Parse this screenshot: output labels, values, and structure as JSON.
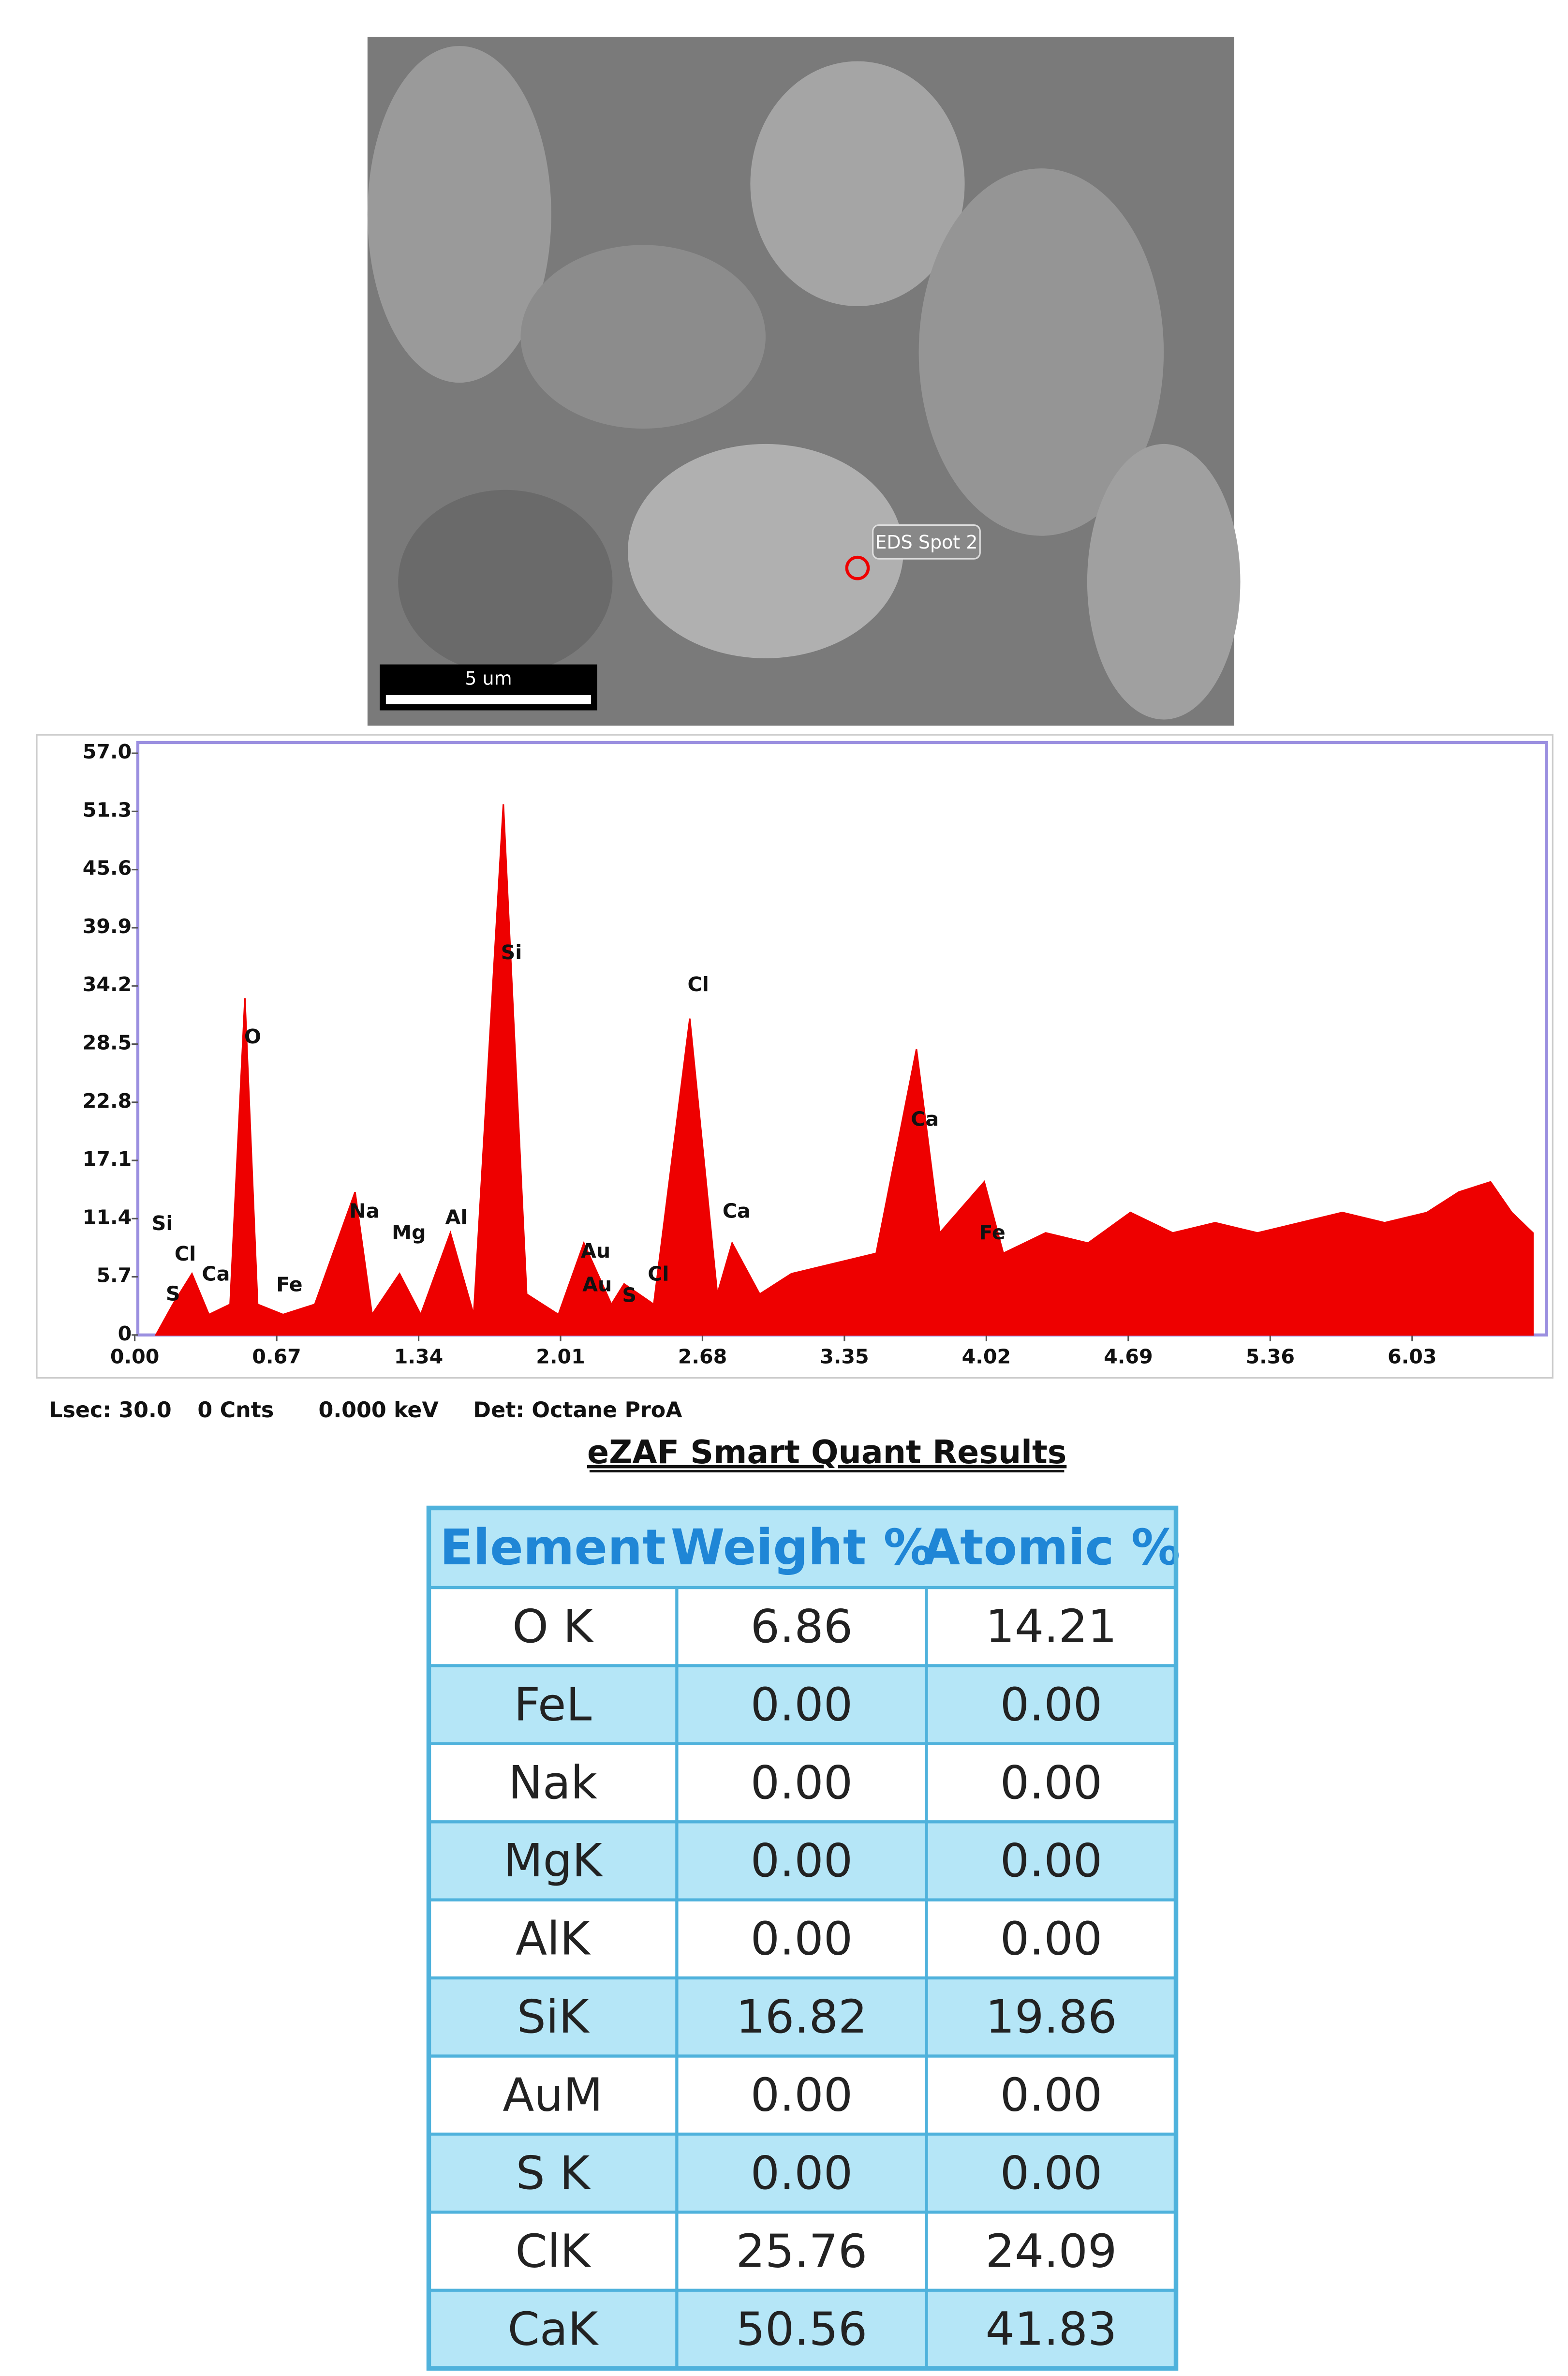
{
  "image": {
    "label": "EDS Spot 2",
    "scale_bar": "5 um"
  },
  "chart_data": {
    "type": "area",
    "color": "#ee0000",
    "x": [
      0.1,
      0.18,
      0.27,
      0.35,
      0.45,
      0.52,
      0.58,
      0.7,
      0.85,
      1.04,
      1.12,
      1.25,
      1.35,
      1.49,
      1.6,
      1.74,
      1.85,
      2.0,
      2.12,
      2.25,
      2.31,
      2.45,
      2.62,
      2.75,
      2.82,
      2.95,
      3.1,
      3.3,
      3.5,
      3.69,
      3.8,
      4.01,
      4.1,
      4.3,
      4.5,
      4.7,
      4.9,
      5.1,
      5.3,
      5.5,
      5.7,
      5.9,
      6.1,
      6.25,
      6.4,
      6.5,
      6.6
    ],
    "values": [
      0,
      3,
      6,
      2,
      3,
      33,
      3,
      2,
      3,
      14,
      2,
      6,
      2,
      10,
      2,
      52,
      4,
      2,
      9,
      3,
      5,
      3,
      31,
      4,
      9,
      4,
      6,
      7,
      8,
      28,
      10,
      15,
      8,
      10,
      9,
      12,
      10,
      11,
      10,
      11,
      12,
      11,
      12,
      14,
      15,
      12,
      10
    ],
    "xlim": [
      0,
      6.65
    ],
    "ylim": [
      0,
      57
    ],
    "xticks": [
      {
        "value": 0,
        "label": "0.00"
      },
      {
        "value": 0.67,
        "label": "0.67"
      },
      {
        "value": 1.34,
        "label": "1.34"
      },
      {
        "value": 2.01,
        "label": "2.01"
      },
      {
        "value": 2.68,
        "label": "2.68"
      },
      {
        "value": 3.35,
        "label": "3.35"
      },
      {
        "value": 4.02,
        "label": "4.02"
      },
      {
        "value": 4.69,
        "label": "4.69"
      },
      {
        "value": 5.36,
        "label": "5.36"
      },
      {
        "value": 6.03,
        "label": "6.03"
      }
    ],
    "yticks": [
      0,
      5.7,
      11.4,
      17.1,
      22.8,
      28.5,
      34.2,
      39.9,
      45.6,
      51.3,
      {
        "value": 57,
        "label": "57.0"
      }
    ],
    "peak_labels": [
      "Si",
      "Cl",
      "Ca",
      "S",
      "Fe",
      "O",
      "Na",
      "Mg",
      "Al",
      "Si",
      "Cl",
      "Au",
      "Au",
      "S",
      "Cl",
      "Ca",
      "Ca",
      "Fe"
    ]
  },
  "status": [
    "Lsec: 30.0",
    "0 Cnts",
    "0.000 keV",
    "Det: Octane ProA"
  ],
  "table": {
    "title": "eZAF Smart Quant Results",
    "header": [
      "Element",
      "Weight %",
      "Atomic %"
    ],
    "rows": [
      [
        "O K",
        "6.86",
        "14.21"
      ],
      [
        "FeL",
        "0.00",
        "0.00"
      ],
      [
        "Nak",
        "0.00",
        "0.00"
      ],
      [
        "MgK",
        "0.00",
        "0.00"
      ],
      [
        "AlK",
        "0.00",
        "0.00"
      ],
      [
        "SiK",
        "16.82",
        "19.86"
      ],
      [
        "AuM",
        "0.00",
        "0.00"
      ],
      [
        "S K",
        "0.00",
        "0.00"
      ],
      [
        "ClK",
        "25.76",
        "24.09"
      ],
      [
        "CaK",
        "50.56",
        "41.83"
      ]
    ]
  }
}
